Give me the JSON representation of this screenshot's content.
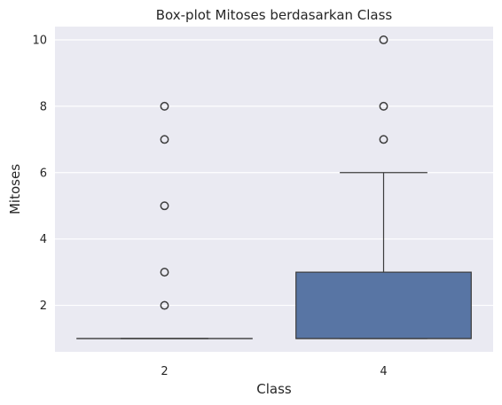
{
  "chart_data": {
    "type": "box",
    "title": "Box-plot Mitoses berdasarkan Class",
    "xlabel": "Class",
    "ylabel": "Mitoses",
    "categories": [
      "2",
      "4"
    ],
    "ylim": [
      0.6,
      10.4
    ],
    "yticks": [
      2,
      4,
      6,
      8,
      10
    ],
    "grid": true,
    "box_color": "#5875a4",
    "background_color": "#eaeaf2",
    "boxes": [
      {
        "category": "2",
        "whisker_low": 1,
        "q1": 1,
        "median": 1,
        "q3": 1,
        "whisker_high": 1,
        "fliers": [
          2,
          3,
          5,
          7,
          8
        ]
      },
      {
        "category": "4",
        "whisker_low": 1,
        "q1": 1,
        "median": 1,
        "q3": 3,
        "whisker_high": 6,
        "fliers": [
          7,
          8,
          10
        ]
      }
    ]
  }
}
